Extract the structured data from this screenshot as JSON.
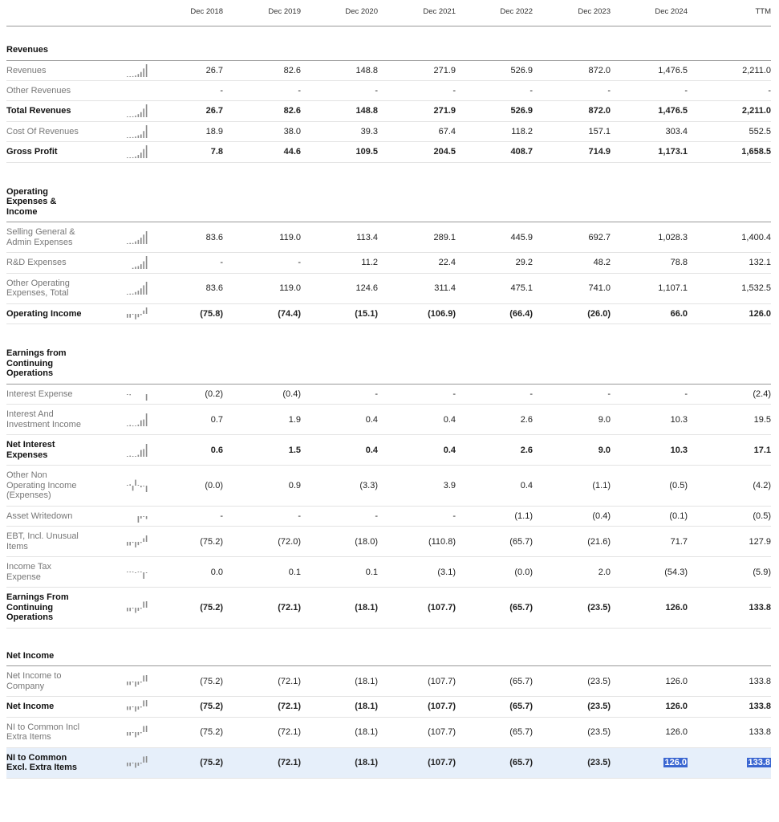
{
  "columns": [
    "Dec 2018",
    "Dec 2019",
    "Dec 2020",
    "Dec 2021",
    "Dec 2022",
    "Dec 2023",
    "Dec 2024",
    "TTM"
  ],
  "sections": [
    {
      "title": "Revenues",
      "rows": [
        {
          "label": "Revenues",
          "bold": false,
          "values": [
            "26.7",
            "82.6",
            "148.8",
            "271.9",
            "526.9",
            "872.0",
            "1,476.5",
            "2,211.0"
          ]
        },
        {
          "label": "Other Revenues",
          "bold": false,
          "nospark": true,
          "values": [
            "-",
            "-",
            "-",
            "-",
            "-",
            "-",
            "-",
            "-"
          ]
        },
        {
          "label": "Total Revenues",
          "bold": true,
          "values": [
            "26.7",
            "82.6",
            "148.8",
            "271.9",
            "526.9",
            "872.0",
            "1,476.5",
            "2,211.0"
          ]
        },
        {
          "label": "Cost Of Revenues",
          "bold": false,
          "values": [
            "18.9",
            "38.0",
            "39.3",
            "67.4",
            "118.2",
            "157.1",
            "303.4",
            "552.5"
          ]
        },
        {
          "label": "Gross Profit",
          "bold": true,
          "values": [
            "7.8",
            "44.6",
            "109.5",
            "204.5",
            "408.7",
            "714.9",
            "1,173.1",
            "1,658.5"
          ]
        }
      ]
    },
    {
      "title": "Operating\nExpenses &\nIncome",
      "rows": [
        {
          "label": "Selling General &\nAdmin Expenses",
          "bold": false,
          "values": [
            "83.6",
            "119.0",
            "113.4",
            "289.1",
            "445.9",
            "692.7",
            "1,028.3",
            "1,400.4"
          ]
        },
        {
          "label": "R&D Expenses",
          "bold": false,
          "values": [
            "-",
            "-",
            "11.2",
            "22.4",
            "29.2",
            "48.2",
            "78.8",
            "132.1"
          ]
        },
        {
          "label": "Other Operating\nExpenses, Total",
          "bold": false,
          "values": [
            "83.6",
            "119.0",
            "124.6",
            "311.4",
            "475.1",
            "741.0",
            "1,107.1",
            "1,532.5"
          ]
        },
        {
          "label": "Operating Income",
          "bold": true,
          "values": [
            "(75.8)",
            "(74.4)",
            "(15.1)",
            "(106.9)",
            "(66.4)",
            "(26.0)",
            "66.0",
            "126.0"
          ]
        }
      ]
    },
    {
      "title": "Earnings from\nContinuing\nOperations",
      "rows": [
        {
          "label": "Interest Expense",
          "bold": false,
          "values": [
            "(0.2)",
            "(0.4)",
            "-",
            "-",
            "-",
            "-",
            "-",
            "(2.4)"
          ]
        },
        {
          "label": "Interest And\nInvestment Income",
          "bold": false,
          "values": [
            "0.7",
            "1.9",
            "0.4",
            "0.4",
            "2.6",
            "9.0",
            "10.3",
            "19.5"
          ]
        },
        {
          "label": "Net Interest\nExpenses",
          "bold": true,
          "values": [
            "0.6",
            "1.5",
            "0.4",
            "0.4",
            "2.6",
            "9.0",
            "10.3",
            "17.1"
          ]
        },
        {
          "label": "Other Non\nOperating Income\n(Expenses)",
          "bold": false,
          "values": [
            "(0.0)",
            "0.9",
            "(3.3)",
            "3.9",
            "0.4",
            "(1.1)",
            "(0.5)",
            "(4.2)"
          ]
        },
        {
          "label": "Asset Writedown",
          "bold": false,
          "values": [
            "-",
            "-",
            "-",
            "-",
            "(1.1)",
            "(0.4)",
            "(0.1)",
            "(0.5)"
          ]
        },
        {
          "label": "EBT, Incl. Unusual\nItems",
          "bold": false,
          "values": [
            "(75.2)",
            "(72.0)",
            "(18.0)",
            "(110.8)",
            "(65.7)",
            "(21.6)",
            "71.7",
            "127.9"
          ]
        },
        {
          "label": "Income Tax\nExpense",
          "bold": false,
          "values": [
            "0.0",
            "0.1",
            "0.1",
            "(3.1)",
            "(0.0)",
            "2.0",
            "(54.3)",
            "(5.9)"
          ]
        },
        {
          "label": "Earnings From\nContinuing\nOperations",
          "bold": true,
          "values": [
            "(75.2)",
            "(72.1)",
            "(18.1)",
            "(107.7)",
            "(65.7)",
            "(23.5)",
            "126.0",
            "133.8"
          ]
        }
      ]
    },
    {
      "title": "Net Income",
      "rows": [
        {
          "label": "Net Income to\nCompany",
          "bold": false,
          "values": [
            "(75.2)",
            "(72.1)",
            "(18.1)",
            "(107.7)",
            "(65.7)",
            "(23.5)",
            "126.0",
            "133.8"
          ]
        },
        {
          "label": "Net Income",
          "bold": true,
          "values": [
            "(75.2)",
            "(72.1)",
            "(18.1)",
            "(107.7)",
            "(65.7)",
            "(23.5)",
            "126.0",
            "133.8"
          ]
        },
        {
          "label": "NI to Common Incl\nExtra Items",
          "bold": false,
          "values": [
            "(75.2)",
            "(72.1)",
            "(18.1)",
            "(107.7)",
            "(65.7)",
            "(23.5)",
            "126.0",
            "133.8"
          ]
        },
        {
          "label": "NI to Common\nExcl. Extra Items",
          "bold": true,
          "highlight": true,
          "selected_columns": [
            6,
            7
          ],
          "values": [
            "(75.2)",
            "(72.1)",
            "(18.1)",
            "(107.7)",
            "(65.7)",
            "(23.5)",
            "126.0",
            "133.8"
          ]
        }
      ]
    }
  ],
  "colors": {
    "highlight_row": "#e6effa",
    "selection": "#3a66d1",
    "sparkline": "#888888"
  }
}
